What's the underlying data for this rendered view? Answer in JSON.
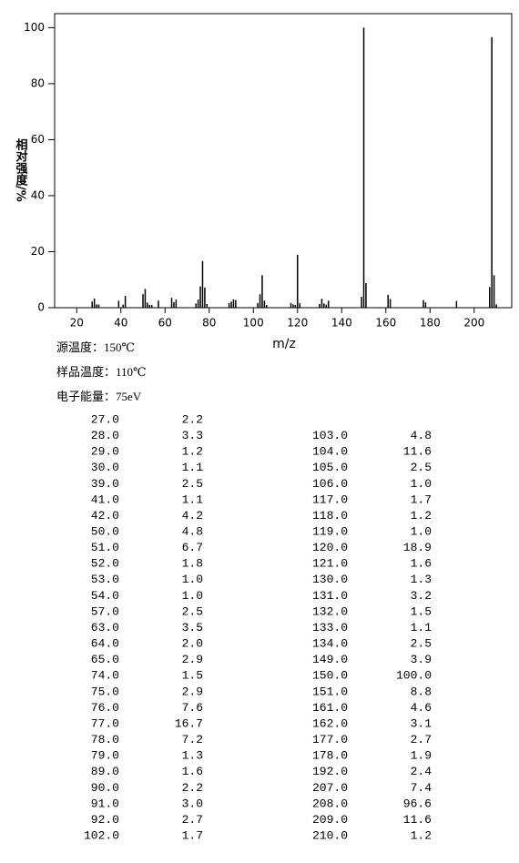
{
  "chart_data": {
    "type": "bar",
    "x_label": "m/z",
    "y_label": "相对强度/%",
    "x": [
      27,
      28,
      29,
      30,
      39,
      41,
      42,
      50,
      51,
      52,
      53,
      54,
      57,
      63,
      64,
      65,
      74,
      75,
      76,
      77,
      78,
      79,
      89,
      90,
      91,
      92,
      102,
      103,
      104,
      105,
      106,
      117,
      118,
      119,
      120,
      121,
      130,
      131,
      132,
      133,
      134,
      149,
      150,
      151,
      161,
      162,
      177,
      178,
      192,
      207,
      208,
      209,
      210
    ],
    "values": [
      2.2,
      3.3,
      1.2,
      1.1,
      2.5,
      1.1,
      4.2,
      4.8,
      6.7,
      1.8,
      1.0,
      1.0,
      2.5,
      3.5,
      2.0,
      2.9,
      1.5,
      2.9,
      7.6,
      16.7,
      7.2,
      1.3,
      1.6,
      2.2,
      3.0,
      2.7,
      1.7,
      4.8,
      11.6,
      2.5,
      1.0,
      1.7,
      1.2,
      1.0,
      18.9,
      1.6,
      1.3,
      3.2,
      1.5,
      1.1,
      2.5,
      3.9,
      100,
      8.8,
      4.6,
      3.1,
      2.7,
      1.9,
      2.4,
      7.4,
      96.6,
      11.6,
      1.2
    ],
    "color": "#000000",
    "xlim": [
      10,
      217
    ],
    "xticks": [
      20,
      40,
      60,
      80,
      100,
      120,
      140,
      160,
      180,
      200
    ],
    "ylim": [
      0,
      105
    ],
    "yticks": [
      0,
      20,
      40,
      60,
      80,
      100
    ]
  },
  "info": [
    "源温度：150℃",
    "样品温度：110℃",
    "电子能量：75eV"
  ],
  "table": {
    "left": [
      [
        "27.0",
        "2.2"
      ],
      [
        "28.0",
        "3.3"
      ],
      [
        "29.0",
        "1.2"
      ],
      [
        "30.0",
        "1.1"
      ],
      [
        "39.0",
        "2.5"
      ],
      [
        "41.0",
        "1.1"
      ],
      [
        "42.0",
        "4.2"
      ],
      [
        "50.0",
        "4.8"
      ],
      [
        "51.0",
        "6.7"
      ],
      [
        "52.0",
        "1.8"
      ],
      [
        "53.0",
        "1.0"
      ],
      [
        "54.0",
        "1.0"
      ],
      [
        "57.0",
        "2.5"
      ],
      [
        "63.0",
        "3.5"
      ],
      [
        "64.0",
        "2.0"
      ],
      [
        "65.0",
        "2.9"
      ],
      [
        "74.0",
        "1.5"
      ],
      [
        "75.0",
        "2.9"
      ],
      [
        "76.0",
        "7.6"
      ],
      [
        "77.0",
        "16.7"
      ],
      [
        "78.0",
        "7.2"
      ],
      [
        "79.0",
        "1.3"
      ],
      [
        "89.0",
        "1.6"
      ],
      [
        "90.0",
        "2.2"
      ],
      [
        "91.0",
        "3.0"
      ],
      [
        "92.0",
        "2.7"
      ],
      [
        "102.0",
        "1.7"
      ]
    ],
    "right": [
      [
        "103.0",
        "4.8"
      ],
      [
        "104.0",
        "11.6"
      ],
      [
        "105.0",
        "2.5"
      ],
      [
        "106.0",
        "1.0"
      ],
      [
        "117.0",
        "1.7"
      ],
      [
        "118.0",
        "1.2"
      ],
      [
        "119.0",
        "1.0"
      ],
      [
        "120.0",
        "18.9"
      ],
      [
        "121.0",
        "1.6"
      ],
      [
        "130.0",
        "1.3"
      ],
      [
        "131.0",
        "3.2"
      ],
      [
        "132.0",
        "1.5"
      ],
      [
        "133.0",
        "1.1"
      ],
      [
        "134.0",
        "2.5"
      ],
      [
        "149.0",
        "3.9"
      ],
      [
        "150.0",
        "100.0"
      ],
      [
        "151.0",
        "8.8"
      ],
      [
        "161.0",
        "4.6"
      ],
      [
        "162.0",
        "3.1"
      ],
      [
        "177.0",
        "2.7"
      ],
      [
        "178.0",
        "1.9"
      ],
      [
        "192.0",
        "2.4"
      ],
      [
        "207.0",
        "7.4"
      ],
      [
        "208.0",
        "96.6"
      ],
      [
        "209.0",
        "11.6"
      ],
      [
        "210.0",
        "1.2"
      ]
    ]
  }
}
